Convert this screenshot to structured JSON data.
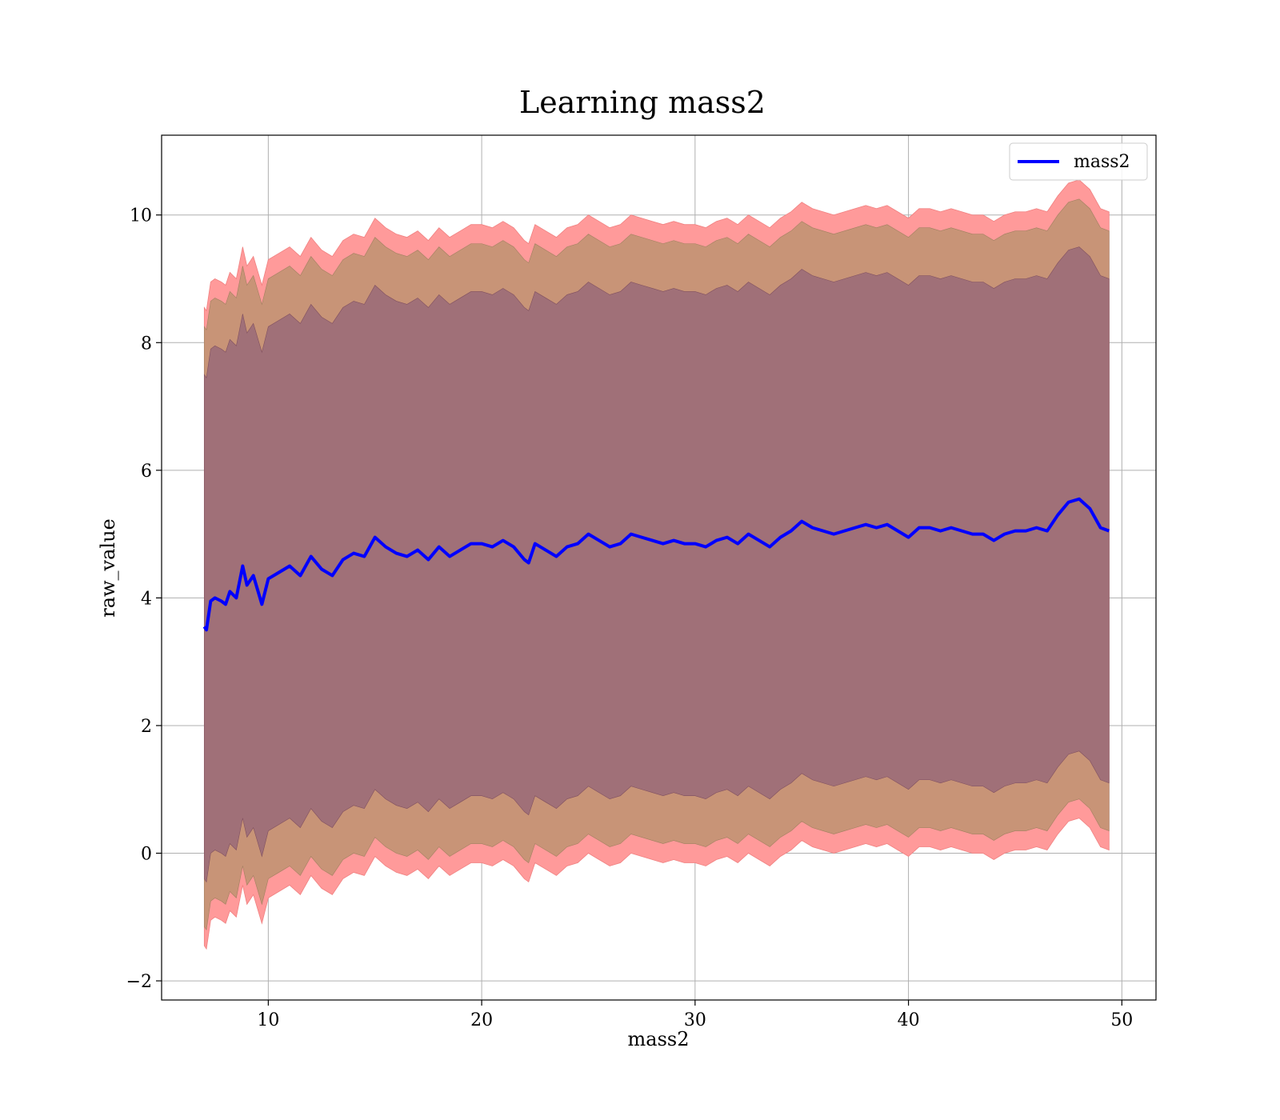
{
  "chart_data": {
    "type": "area",
    "title": "Learning mass2",
    "xlabel": "mass2",
    "ylabel": "raw_value",
    "xlim": [
      5,
      51.6
    ],
    "ylim": [
      -2.3,
      11.25
    ],
    "xticks": [
      10,
      20,
      30,
      40,
      50
    ],
    "yticks": [
      -2,
      0,
      2,
      4,
      6,
      8,
      10
    ],
    "ytick_labels": [
      "−2",
      "0",
      "2",
      "4",
      "6",
      "8",
      "10"
    ],
    "grid": true,
    "legend": {
      "placement": "top-right",
      "entries": [
        "mass2"
      ]
    },
    "colors": {
      "line": "#0000ff",
      "band_outer": "#ff9a9a",
      "band_middle": "#c89477",
      "band_inner": "#a07078",
      "grid": "#b0b0b0"
    },
    "series": [
      {
        "name": "mass2",
        "x": [
          7.0,
          7.1,
          7.3,
          7.5,
          7.8,
          8.0,
          8.2,
          8.5,
          8.8,
          9.0,
          9.3,
          9.7,
          10.0,
          10.5,
          11.0,
          11.5,
          12.0,
          12.5,
          13.0,
          13.5,
          14.0,
          14.5,
          15.0,
          15.5,
          16.0,
          16.5,
          17.0,
          17.5,
          18.0,
          18.5,
          19.0,
          19.5,
          20.0,
          20.5,
          21.0,
          21.5,
          22.0,
          22.2,
          22.5,
          23.0,
          23.5,
          24.0,
          24.5,
          25.0,
          25.5,
          26.0,
          26.5,
          27.0,
          27.5,
          28.0,
          28.5,
          29.0,
          29.5,
          30.0,
          30.5,
          31.0,
          31.5,
          32.0,
          32.5,
          33.0,
          33.5,
          34.0,
          34.5,
          35.0,
          35.5,
          36.0,
          36.5,
          37.0,
          37.5,
          38.0,
          38.5,
          39.0,
          39.5,
          40.0,
          40.5,
          41.0,
          41.5,
          42.0,
          42.5,
          43.0,
          43.5,
          44.0,
          44.5,
          45.0,
          45.5,
          46.0,
          46.5,
          47.0,
          47.5,
          48.0,
          48.5,
          49.0,
          49.4
        ],
        "mean": [
          3.55,
          3.5,
          3.95,
          4.0,
          3.95,
          3.9,
          4.1,
          4.0,
          4.5,
          4.2,
          4.35,
          3.9,
          4.3,
          4.4,
          4.5,
          4.35,
          4.65,
          4.45,
          4.35,
          4.6,
          4.7,
          4.65,
          4.95,
          4.8,
          4.7,
          4.65,
          4.75,
          4.6,
          4.8,
          4.65,
          4.75,
          4.85,
          4.85,
          4.8,
          4.9,
          4.8,
          4.6,
          4.55,
          4.85,
          4.75,
          4.65,
          4.8,
          4.85,
          5.0,
          4.9,
          4.8,
          4.85,
          5.0,
          4.95,
          4.9,
          4.85,
          4.9,
          4.85,
          4.85,
          4.8,
          4.9,
          4.95,
          4.85,
          5.0,
          4.9,
          4.8,
          4.95,
          5.05,
          5.2,
          5.1,
          5.05,
          5.0,
          5.05,
          5.1,
          5.15,
          5.1,
          5.15,
          5.05,
          4.95,
          5.1,
          5.1,
          5.05,
          5.1,
          5.05,
          5.0,
          5.0,
          4.9,
          5.0,
          5.05,
          5.05,
          5.1,
          5.05,
          5.3,
          5.5,
          5.55,
          5.4,
          5.1,
          5.05
        ],
        "band_outer": {
          "upper_offset": 5.0,
          "lower_offset": 5.0
        },
        "band_middle": {
          "upper_offset": 4.7,
          "lower_offset": 4.7
        },
        "band_inner": {
          "upper_offset": 3.95,
          "lower_offset": 3.95
        }
      }
    ]
  }
}
